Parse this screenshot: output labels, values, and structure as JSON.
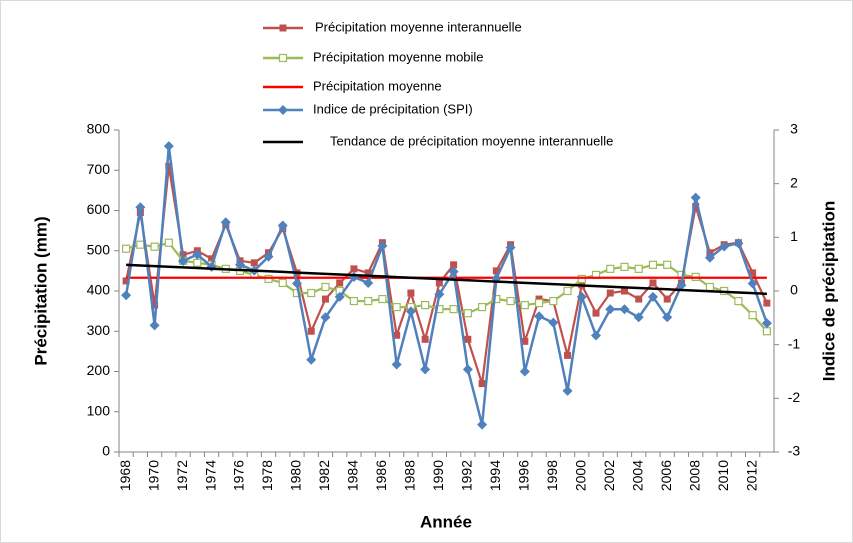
{
  "chart_data": {
    "type": "line",
    "xlabel": "Année",
    "ylabel": "Précipitation (mm)",
    "y2label": "Indice de précipitation",
    "categories": [
      "1968",
      null,
      "1970",
      null,
      "1972",
      null,
      "1974",
      null,
      "1976",
      null,
      "1978",
      null,
      "1980",
      null,
      "1982",
      null,
      "1984",
      null,
      "1986",
      null,
      "1988",
      null,
      "1990",
      null,
      "1992",
      null,
      "1994",
      null,
      "1996",
      null,
      "1998",
      null,
      "2000",
      null,
      "2002",
      null,
      "2004",
      null,
      "2006",
      null,
      "2008",
      null,
      "2010",
      null,
      "2012",
      null
    ],
    "ylim": [
      0,
      800
    ],
    "yticks": [
      0,
      100,
      200,
      300,
      400,
      500,
      600,
      700,
      800
    ],
    "y2lim": [
      -3,
      3
    ],
    "y2ticks": [
      -3,
      -2,
      -1,
      0,
      1,
      2,
      3
    ],
    "series": [
      {
        "name": "Précipitation moyenne interannuelle",
        "color": "#c0504d",
        "marker": "square",
        "values": [
          425,
          595,
          365,
          710,
          490,
          500,
          480,
          565,
          475,
          470,
          495,
          555,
          445,
          300,
          380,
          420,
          455,
          445,
          520,
          290,
          395,
          280,
          420,
          465,
          280,
          170,
          450,
          515,
          275,
          380,
          375,
          240,
          415,
          345,
          395,
          400,
          380,
          420,
          380,
          420,
          610,
          495,
          515,
          520,
          445,
          370
        ]
      },
      {
        "name": "Précipitation moyenne mobile",
        "color": "#9bbb59",
        "marker": "square-open",
        "values": [
          505,
          515,
          510,
          520,
          475,
          470,
          465,
          455,
          450,
          440,
          430,
          420,
          395,
          395,
          410,
          400,
          375,
          375,
          380,
          360,
          360,
          365,
          355,
          355,
          345,
          360,
          380,
          375,
          365,
          370,
          375,
          400,
          430,
          440,
          455,
          460,
          455,
          465,
          465,
          440,
          435,
          410,
          400,
          375,
          340,
          300
        ]
      },
      {
        "name": "Précipitation moyenne",
        "color": "#ff0000",
        "marker": "none",
        "values": [
          433,
          433,
          433,
          433,
          433,
          433,
          433,
          433,
          433,
          433,
          433,
          433,
          433,
          433,
          433,
          433,
          433,
          433,
          433,
          433,
          433,
          433,
          433,
          433,
          433,
          433,
          433,
          433,
          433,
          433,
          433,
          433,
          433,
          433,
          433,
          433,
          433,
          433,
          433,
          433,
          433,
          433,
          433,
          433,
          433,
          433
        ]
      },
      {
        "name": "Indice de précipitation (SPI)",
        "color": "#4f81bd",
        "marker": "diamond",
        "axis": "y2",
        "values": [
          -0.08,
          1.56,
          -0.64,
          2.7,
          0.56,
          0.68,
          0.45,
          1.28,
          0.49,
          0.38,
          0.64,
          1.22,
          0.14,
          -1.28,
          -0.49,
          -0.11,
          0.26,
          0.15,
          0.84,
          -1.37,
          -0.38,
          -1.46,
          -0.06,
          0.36,
          -1.46,
          -2.49,
          0.23,
          0.81,
          -1.5,
          -0.47,
          -0.59,
          -1.86,
          -0.11,
          -0.83,
          -0.34,
          -0.34,
          -0.49,
          -0.11,
          -0.49,
          0.11,
          1.74,
          0.62,
          0.83,
          0.89,
          0.14,
          -0.6
        ]
      },
      {
        "name": "Tendance de précipitation moyenne interannuelle",
        "color": "#000000",
        "marker": "none",
        "values": [
          465,
          463.4,
          461.8,
          460.2,
          458.6,
          457,
          455.4,
          453.8,
          452.2,
          450.6,
          449,
          447.4,
          445.8,
          444.2,
          442.6,
          441,
          439.4,
          437.8,
          436.2,
          434.6,
          433,
          431.4,
          429.8,
          428.2,
          426.6,
          425,
          423.4,
          421.8,
          420.2,
          418.6,
          417,
          415.4,
          413.8,
          412.2,
          410.6,
          409,
          407.4,
          405.8,
          404.2,
          402.6,
          401,
          399.4,
          397.8,
          396.2,
          394.6,
          393
        ]
      }
    ]
  }
}
